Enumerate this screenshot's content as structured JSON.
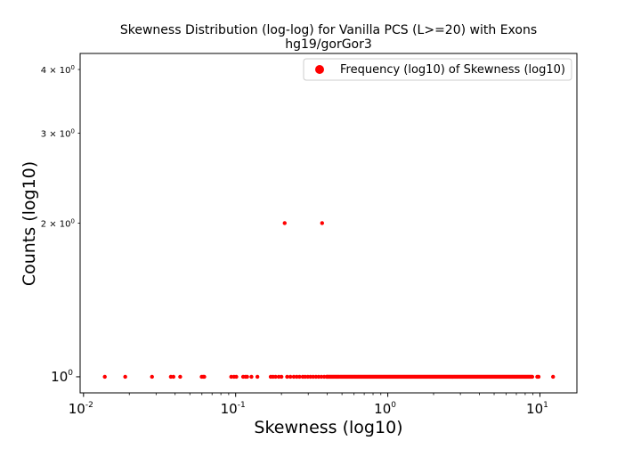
{
  "chart_data": {
    "type": "scatter",
    "title": "Skewness Distribution (log-log) for Vanilla PCS (L>=20) with Exons",
    "subtitle": "hg19/gorGor3",
    "xlabel": "Skewness (log10)",
    "ylabel": "Counts (log10)",
    "xscale": "log",
    "yscale": "log",
    "xlim": [
      0.0095,
      17.5
    ],
    "ylim": [
      0.93,
      4.3
    ],
    "color": "#ff0000",
    "legend": {
      "label": "Frequency (log10) of Skewness (log10)",
      "position": "top-right"
    },
    "x_ticks": [
      {
        "value": 0.01,
        "base": "10",
        "exp": "-2"
      },
      {
        "value": 0.1,
        "base": "10",
        "exp": "-1"
      },
      {
        "value": 1,
        "base": "10",
        "exp": "0"
      },
      {
        "value": 10,
        "base": "10",
        "exp": "1"
      }
    ],
    "y_ticks": [
      {
        "value": 1,
        "kind": "major",
        "base": "10",
        "exp": "0"
      },
      {
        "value": 2,
        "kind": "minor",
        "coef": "2 × 10",
        "exp": "0"
      },
      {
        "value": 3,
        "kind": "minor",
        "coef": "3 × 10",
        "exp": "0"
      },
      {
        "value": 4,
        "kind": "minor",
        "coef": "4 × 10",
        "exp": "0"
      }
    ],
    "points_count_2": [
      0.21,
      0.37
    ],
    "points_count_1_sparse": [
      0.0138,
      0.0188,
      0.0282,
      0.0375,
      0.039,
      0.0432,
      0.0598,
      0.0612,
      0.0622,
      0.0935,
      0.0975,
      0.101,
      0.112,
      0.116,
      0.119,
      0.127,
      0.139,
      0.17,
      0.176,
      0.183,
      0.192,
      0.2,
      0.218,
      0.229,
      0.241,
      0.252,
      0.263,
      0.276,
      0.286,
      0.298,
      0.31,
      0.323,
      0.337,
      0.351,
      0.366,
      0.382,
      0.397
    ],
    "points_count_1_dense_range": [
      0.4,
      8.9
    ],
    "points_count_1_dense_n": 190,
    "points_count_1_tail": [
      9.6,
      9.8,
      12.2
    ]
  }
}
